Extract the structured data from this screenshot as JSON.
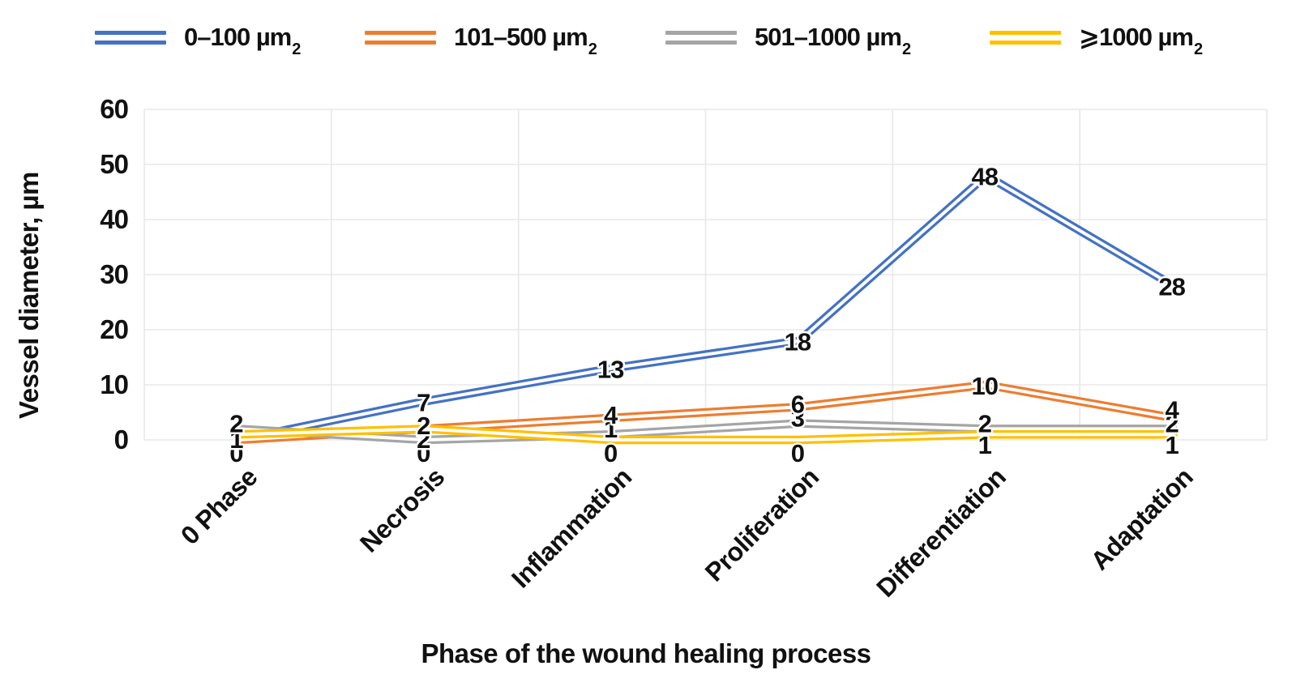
{
  "figure": {
    "background": "#ffffff",
    "grid_color": "#e8e8e8",
    "text_color": "#111111"
  },
  "chart_data": {
    "type": "line",
    "title": "",
    "xlabel": "Phase of the wound healing process",
    "ylabel": "Vessel diameter, µm",
    "ylim": [
      0,
      60
    ],
    "yticks": [
      0,
      10,
      20,
      30,
      40,
      50,
      60
    ],
    "grid": {
      "horizontal": true,
      "vertical": true
    },
    "legend_position": "top",
    "line_style": "double-stroke",
    "data_labels": true,
    "categories": [
      "0 Phase",
      "Necrosis",
      "Inflammation",
      "Proliferation",
      "Differentiation",
      "Adaptation"
    ],
    "series": [
      {
        "name": "0–100 µm",
        "name_subscript": "2",
        "color": "#4472C4",
        "values": [
          0,
          7,
          13,
          18,
          48,
          28
        ]
      },
      {
        "name": "101–500 µm",
        "name_subscript": "2",
        "color": "#ED7D31",
        "values": [
          0,
          2,
          4,
          6,
          10,
          4
        ]
      },
      {
        "name": "501–1000 µm",
        "name_subscript": "2",
        "color": "#A5A5A5",
        "values": [
          2,
          0,
          1,
          3,
          2,
          2
        ]
      },
      {
        "name": "⩾1000 µm",
        "name_subscript": "2",
        "color": "#FFC000",
        "values": [
          1,
          2,
          0,
          0,
          1,
          1
        ]
      }
    ]
  }
}
